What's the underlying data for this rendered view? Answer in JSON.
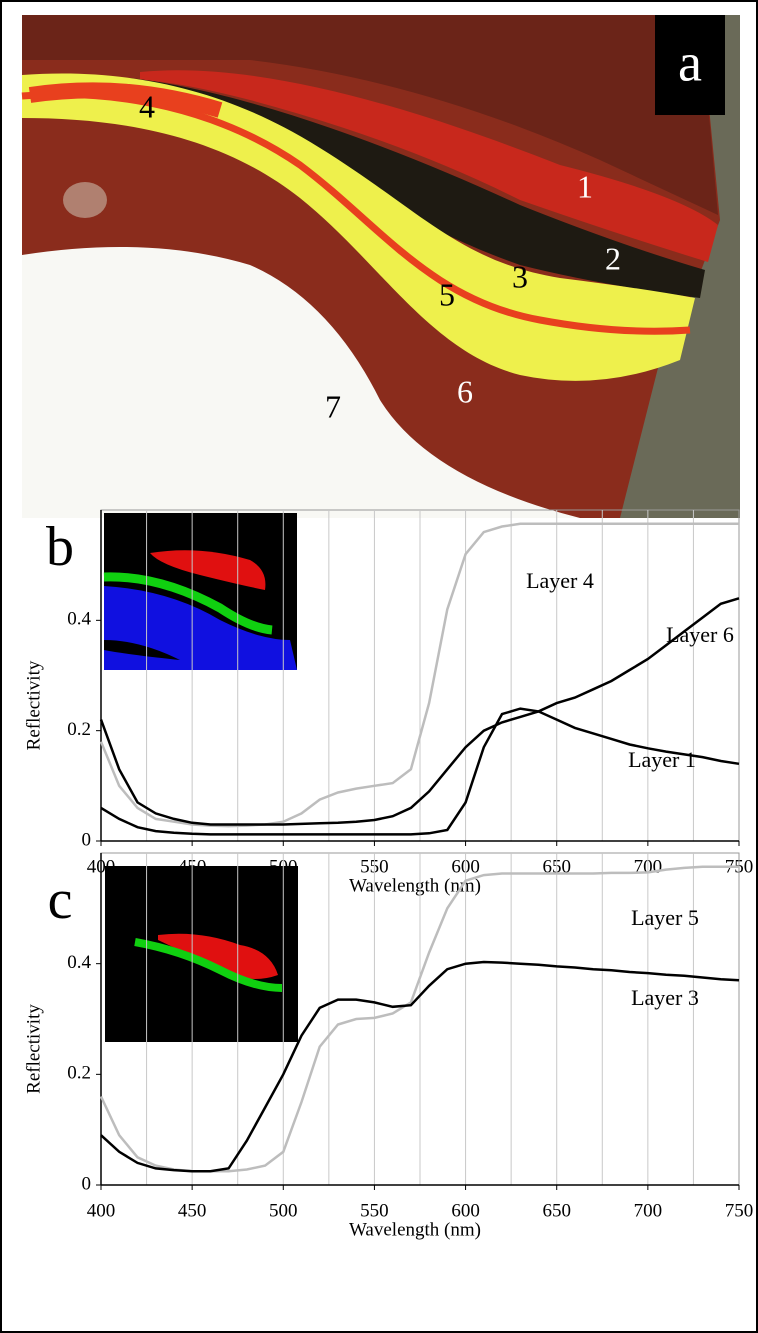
{
  "panel_a": {
    "label": "a",
    "layer_labels": [
      "1",
      "2",
      "3",
      "4",
      "5",
      "6",
      "7"
    ]
  },
  "chart_data": [
    {
      "type": "line",
      "panel_label": "b",
      "xlabel": "Wavelength (nm)",
      "ylabel": "Reflectivity",
      "x": [
        400,
        410,
        420,
        430,
        440,
        450,
        460,
        470,
        480,
        490,
        500,
        510,
        520,
        530,
        540,
        550,
        560,
        570,
        580,
        590,
        600,
        610,
        620,
        630,
        640,
        650,
        660,
        670,
        680,
        690,
        700,
        710,
        720,
        730,
        740,
        750
      ],
      "series": [
        {
          "name": "Layer 4",
          "color": "#bdbdbd",
          "values": [
            0.18,
            0.1,
            0.06,
            0.04,
            0.035,
            0.03,
            0.028,
            0.027,
            0.028,
            0.03,
            0.035,
            0.05,
            0.075,
            0.088,
            0.095,
            0.1,
            0.105,
            0.13,
            0.25,
            0.42,
            0.52,
            0.56,
            0.57,
            0.575,
            0.575,
            0.575,
            0.575,
            0.575,
            0.575,
            0.575,
            0.575,
            0.575,
            0.575,
            0.575,
            0.575,
            0.575
          ]
        },
        {
          "name": "Layer 6",
          "color": "#000000",
          "values": [
            0.22,
            0.13,
            0.07,
            0.05,
            0.04,
            0.033,
            0.03,
            0.03,
            0.03,
            0.03,
            0.03,
            0.031,
            0.032,
            0.033,
            0.035,
            0.038,
            0.045,
            0.06,
            0.09,
            0.13,
            0.17,
            0.2,
            0.215,
            0.225,
            0.235,
            0.25,
            0.26,
            0.275,
            0.29,
            0.31,
            0.33,
            0.355,
            0.38,
            0.405,
            0.43,
            0.44
          ]
        },
        {
          "name": "Layer 1",
          "color": "#000000",
          "values": [
            0.06,
            0.04,
            0.025,
            0.018,
            0.015,
            0.013,
            0.012,
            0.012,
            0.012,
            0.012,
            0.012,
            0.012,
            0.012,
            0.012,
            0.012,
            0.012,
            0.012,
            0.012,
            0.014,
            0.02,
            0.07,
            0.17,
            0.23,
            0.24,
            0.235,
            0.22,
            0.205,
            0.195,
            0.185,
            0.175,
            0.168,
            0.162,
            0.157,
            0.152,
            0.145,
            0.14
          ]
        }
      ],
      "xlim": [
        400,
        750
      ],
      "ylim": [
        0,
        0.6
      ],
      "xticks": [
        400,
        450,
        500,
        550,
        600,
        650,
        700,
        750
      ],
      "yticks": [
        0,
        0.2,
        0.4
      ],
      "x_grid": [
        425,
        450,
        475,
        500,
        525,
        550,
        575,
        600,
        625,
        650,
        675,
        700,
        725
      ],
      "grid": true
    },
    {
      "type": "line",
      "panel_label": "c",
      "xlabel": "Wavelength (nm)",
      "ylabel": "Reflectivity",
      "x": [
        400,
        410,
        420,
        430,
        440,
        450,
        460,
        470,
        480,
        490,
        500,
        510,
        520,
        530,
        540,
        550,
        560,
        570,
        580,
        590,
        600,
        610,
        620,
        630,
        640,
        650,
        660,
        670,
        680,
        690,
        700,
        710,
        720,
        730,
        740,
        750
      ],
      "series": [
        {
          "name": "Layer 5",
          "color": "#bdbdbd",
          "values": [
            0.16,
            0.09,
            0.05,
            0.035,
            0.028,
            0.025,
            0.025,
            0.025,
            0.028,
            0.035,
            0.06,
            0.15,
            0.25,
            0.29,
            0.3,
            0.302,
            0.31,
            0.33,
            0.42,
            0.5,
            0.55,
            0.56,
            0.563,
            0.563,
            0.563,
            0.563,
            0.563,
            0.563,
            0.564,
            0.564,
            0.565,
            0.57,
            0.573,
            0.575,
            0.575,
            0.575
          ]
        },
        {
          "name": "Layer 3",
          "color": "#000000",
          "values": [
            0.09,
            0.06,
            0.04,
            0.03,
            0.027,
            0.025,
            0.025,
            0.03,
            0.08,
            0.14,
            0.2,
            0.27,
            0.32,
            0.335,
            0.335,
            0.33,
            0.322,
            0.325,
            0.36,
            0.39,
            0.4,
            0.403,
            0.402,
            0.4,
            0.398,
            0.395,
            0.393,
            0.39,
            0.388,
            0.385,
            0.383,
            0.38,
            0.378,
            0.375,
            0.372,
            0.37
          ]
        }
      ],
      "xlim": [
        400,
        750
      ],
      "ylim": [
        0,
        0.6
      ],
      "xticks": [
        400,
        450,
        500,
        550,
        600,
        650,
        700,
        750
      ],
      "yticks": [
        0,
        0.2,
        0.4
      ],
      "x_grid": [
        425,
        450,
        475,
        500,
        525,
        550,
        575,
        600,
        625,
        650,
        675,
        700,
        725
      ],
      "grid": true
    }
  ]
}
